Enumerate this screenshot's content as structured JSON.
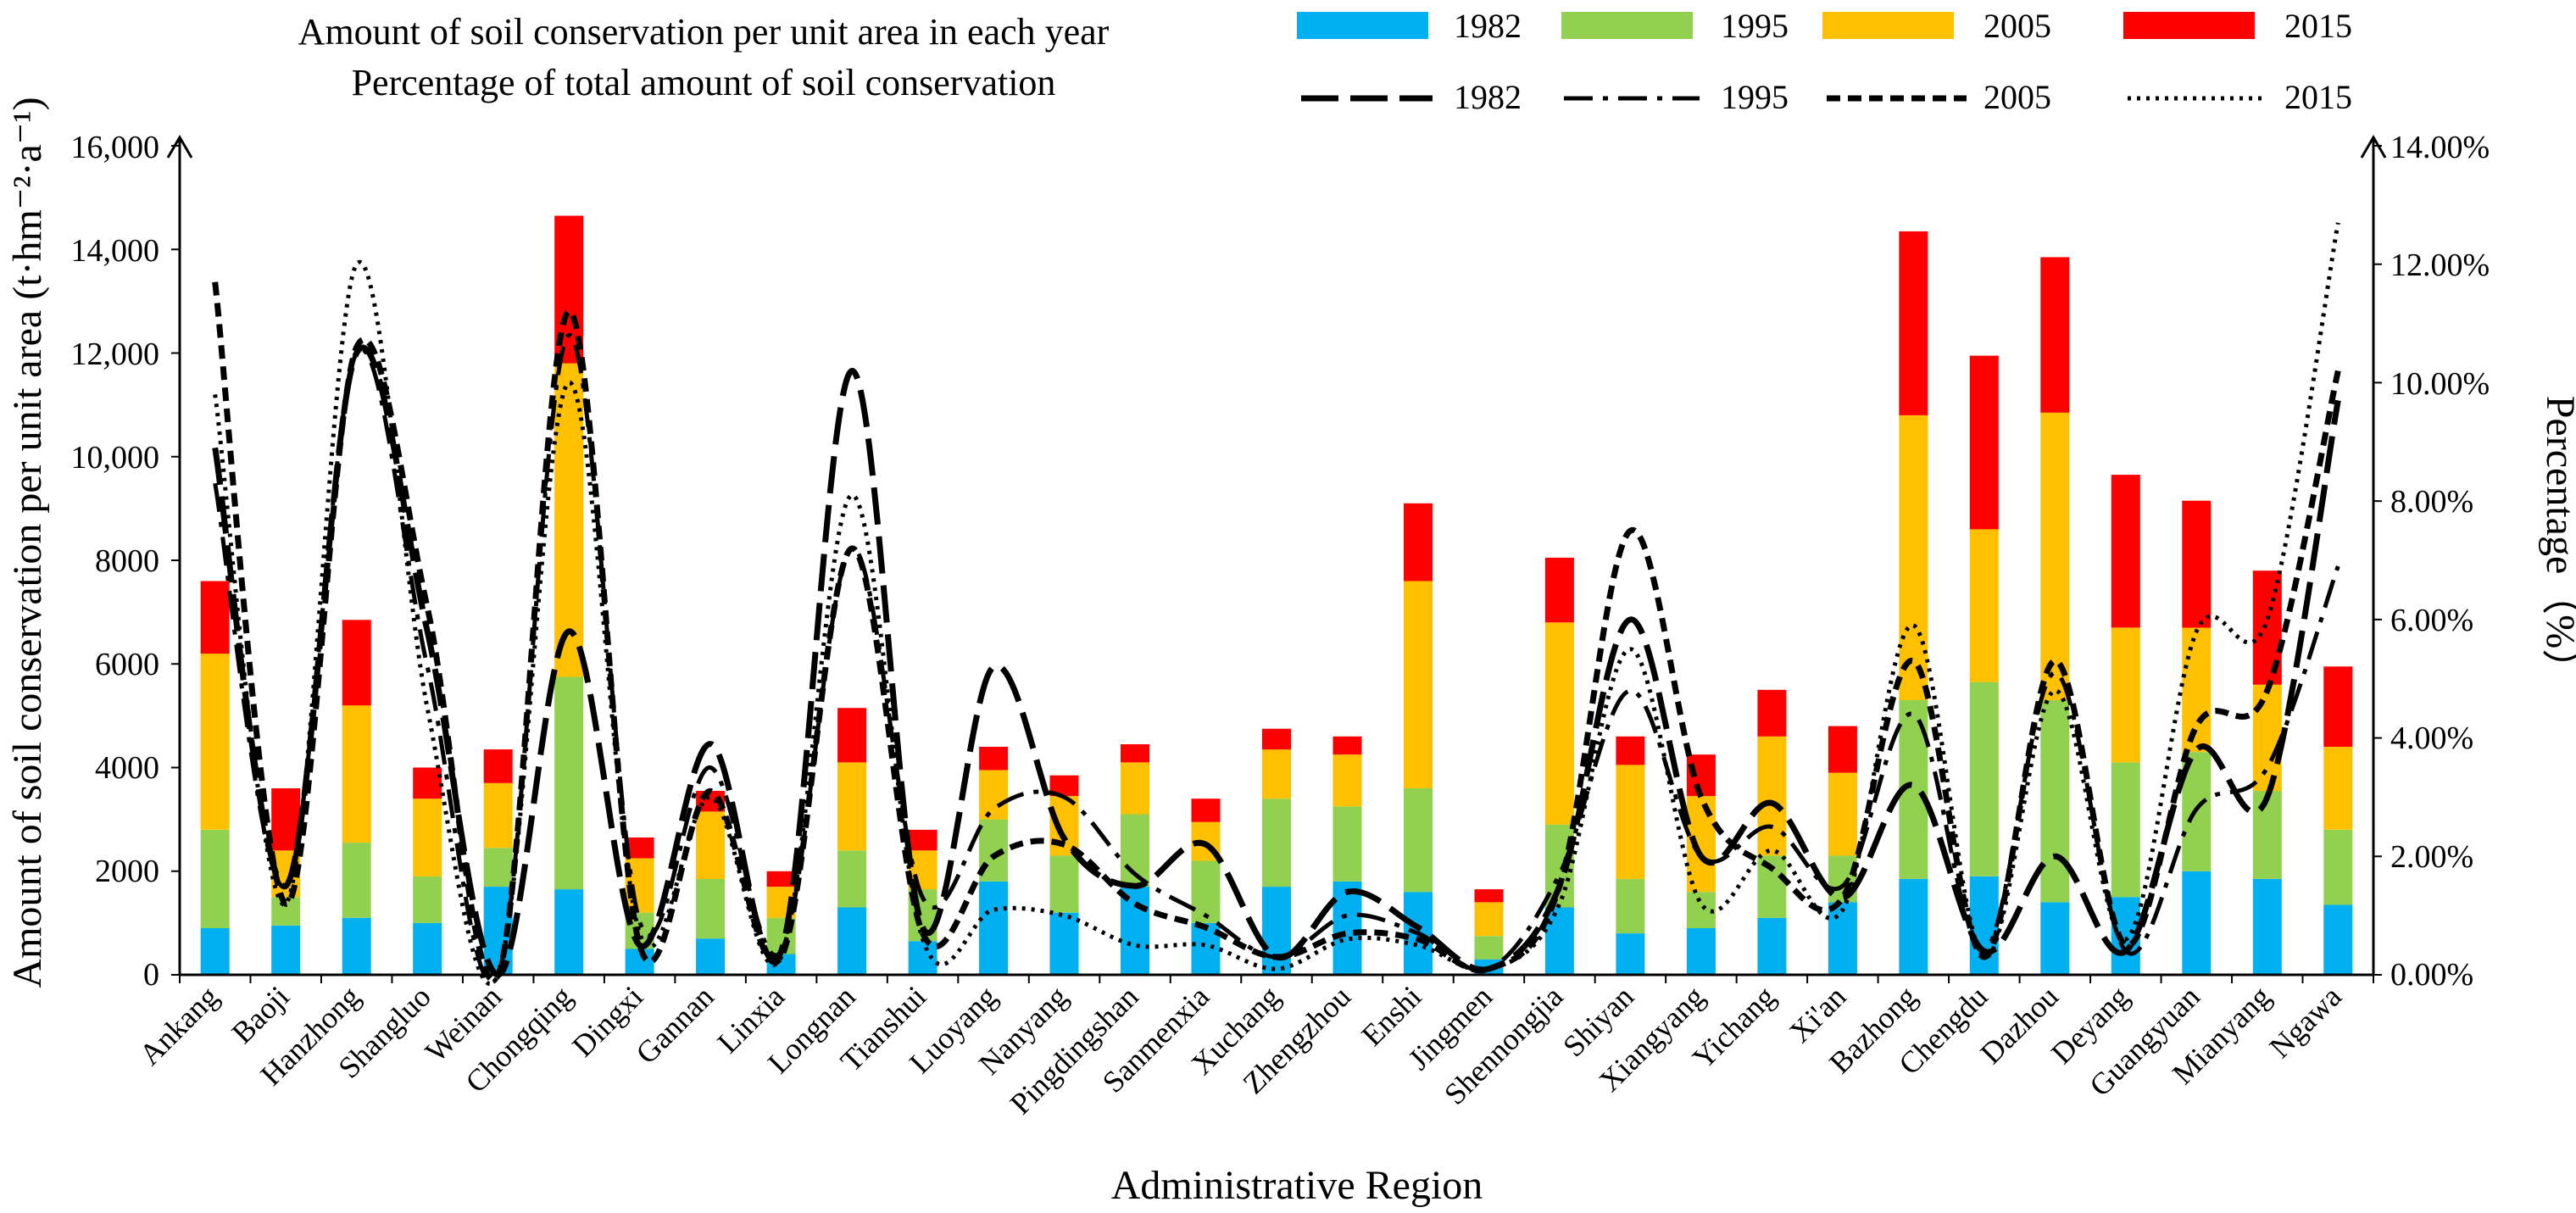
{
  "chart_data": {
    "type": "bar",
    "stacked": true,
    "title_lines": [
      "Amount of soil conservation per unit area in each year",
      "Percentage of total amount of soil conservation"
    ],
    "xlabel": "Administrative Region",
    "ylabel": "Amount of soil conservation per unit area (t·hm⁻²·a⁻¹)",
    "y2label": "Percentage（%）",
    "ylim": [
      0,
      16000
    ],
    "y2lim": [
      0,
      14
    ],
    "y_ticks": [
      "0",
      "2000",
      "4000",
      "6000",
      "8000",
      "10,000",
      "12,000",
      "14,000",
      "16,000"
    ],
    "y2_ticks": [
      "0.00%",
      "2.00%",
      "4.00%",
      "6.00%",
      "8.00%",
      "10.00%",
      "12.00%",
      "14.00%"
    ],
    "categories": [
      "Ankang",
      "Baoji",
      "Hanzhong",
      "Shangluo",
      "Weinan",
      "Chongqing",
      "Dingxi",
      "Gannan",
      "Linxia",
      "Longnan",
      "Tianshui",
      "Luoyang",
      "Nanyang",
      "Pingdingshan",
      "Sanmenxia",
      "Xuchang",
      "Zhengzhou",
      "Enshi",
      "Jingmen",
      "Shennongjia",
      "Shiyan",
      "Xiangyang",
      "Yichang",
      "Xi'an",
      "Bazhong",
      "Chengdu",
      "Dazhou",
      "Deyang",
      "Guangyuan",
      "Mianyang",
      "Ngawa"
    ],
    "series": [
      {
        "name": "1982",
        "color": "#00b0f0",
        "values": [
          900,
          950,
          1100,
          1000,
          1700,
          1650,
          500,
          700,
          400,
          1300,
          650,
          1800,
          1200,
          1700,
          1000,
          1700,
          1800,
          1600,
          300,
          1300,
          800,
          900,
          1100,
          1400,
          1850,
          1900,
          1400,
          1500,
          2000,
          1850,
          1350
        ]
      },
      {
        "name": "1995",
        "color": "#92d050",
        "values": [
          1900,
          550,
          1450,
          900,
          750,
          4100,
          700,
          1150,
          700,
          1100,
          1000,
          1200,
          1100,
          1400,
          1200,
          1700,
          1450,
          2000,
          450,
          1600,
          1050,
          700,
          1200,
          900,
          3450,
          3750,
          3900,
          2600,
          2300,
          1700,
          1450
        ]
      },
      {
        "name": "2005",
        "color": "#ffc000",
        "values": [
          3400,
          900,
          2650,
          1500,
          1250,
          6050,
          1050,
          1300,
          600,
          1700,
          750,
          950,
          1150,
          1000,
          750,
          950,
          1000,
          4000,
          650,
          3900,
          2200,
          1850,
          2300,
          1600,
          5500,
          2950,
          5550,
          2600,
          2400,
          2050,
          1600
        ]
      },
      {
        "name": "2015",
        "color": "#ff0000",
        "values": [
          1400,
          1200,
          1650,
          600,
          650,
          2850,
          400,
          400,
          300,
          1050,
          400,
          450,
          400,
          350,
          450,
          400,
          350,
          1500,
          250,
          1250,
          550,
          800,
          900,
          900,
          3550,
          3350,
          3000,
          2950,
          2450,
          2200,
          1550
        ]
      }
    ],
    "line_series": [
      {
        "name": "1982",
        "style": "long-dash",
        "values": [
          8.9,
          1.5,
          10.5,
          5.8,
          0.0,
          5.8,
          0.5,
          3.9,
          0.4,
          10.2,
          0.8,
          5.2,
          2.3,
          1.5,
          2.2,
          0.3,
          1.4,
          0.8,
          0.1,
          1.5,
          6.0,
          2.0,
          2.9,
          1.3,
          3.2,
          0.4,
          2.0,
          0.4,
          3.8,
          3.0,
          9.7
        ]
      },
      {
        "name": "1995",
        "style": "dash-dot",
        "values": [
          8.3,
          1.5,
          10.5,
          5.2,
          0.0,
          10.8,
          0.9,
          3.5,
          0.4,
          7.2,
          1.3,
          2.8,
          3.0,
          1.7,
          1.0,
          0.3,
          1.0,
          0.7,
          0.1,
          1.7,
          4.8,
          2.0,
          2.5,
          1.5,
          4.4,
          0.4,
          5.1,
          0.4,
          2.8,
          3.5,
          6.9
        ]
      },
      {
        "name": "2005",
        "style": "short-dash",
        "values": [
          11.7,
          1.2,
          10.6,
          6.2,
          0.0,
          11.2,
          0.5,
          3.1,
          0.3,
          7.2,
          0.7,
          2.0,
          2.2,
          1.2,
          0.8,
          0.3,
          0.7,
          0.6,
          0.1,
          1.5,
          7.5,
          3.0,
          1.8,
          1.3,
          5.3,
          0.3,
          5.3,
          0.5,
          4.2,
          4.8,
          10.2
        ]
      },
      {
        "name": "2015",
        "style": "dotted",
        "values": [
          9.8,
          1.2,
          12.0,
          4.5,
          0.0,
          10.0,
          0.7,
          3.0,
          0.3,
          8.1,
          0.6,
          1.1,
          1.0,
          0.5,
          0.5,
          0.1,
          0.6,
          0.5,
          0.1,
          1.2,
          5.5,
          1.2,
          2.1,
          1.1,
          5.9,
          0.3,
          4.8,
          0.6,
          5.8,
          6.0,
          12.7
        ]
      }
    ]
  }
}
